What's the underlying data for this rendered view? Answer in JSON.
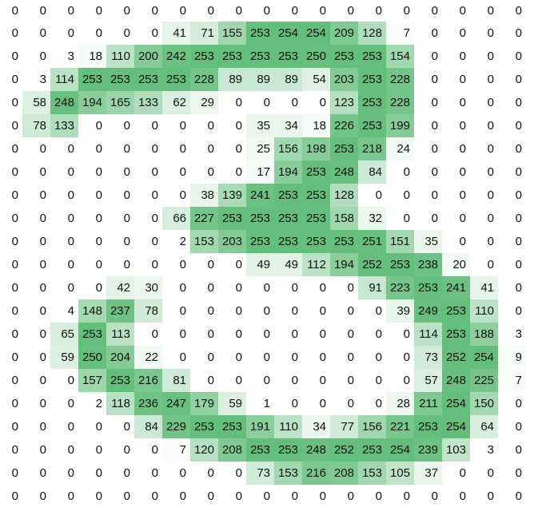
{
  "chart_data": {
    "type": "heatmap",
    "color_scale": {
      "min_value": 0,
      "max_value": 254,
      "min_color": "#FFFFFF",
      "max_color": "#63BE7B"
    },
    "values": [
      [
        0,
        0,
        0,
        0,
        0,
        0,
        0,
        0,
        0,
        0,
        0,
        0,
        0,
        0,
        0,
        0,
        0,
        0,
        0
      ],
      [
        0,
        0,
        0,
        0,
        0,
        0,
        41,
        71,
        155,
        253,
        254,
        254,
        209,
        128,
        7,
        0,
        0,
        0,
        0
      ],
      [
        0,
        0,
        3,
        18,
        110,
        200,
        242,
        253,
        253,
        253,
        253,
        250,
        253,
        253,
        154,
        0,
        0,
        0,
        0
      ],
      [
        0,
        3,
        114,
        253,
        253,
        253,
        253,
        228,
        89,
        89,
        89,
        54,
        203,
        253,
        228,
        0,
        0,
        0,
        0
      ],
      [
        0,
        58,
        248,
        194,
        165,
        133,
        62,
        29,
        0,
        0,
        0,
        0,
        123,
        253,
        228,
        0,
        0,
        0,
        0
      ],
      [
        0,
        78,
        133,
        0,
        0,
        0,
        0,
        0,
        0,
        35,
        34,
        18,
        226,
        253,
        199,
        0,
        0,
        0,
        0
      ],
      [
        0,
        0,
        0,
        0,
        0,
        0,
        0,
        0,
        0,
        25,
        156,
        198,
        253,
        218,
        24,
        0,
        0,
        0,
        0
      ],
      [
        0,
        0,
        0,
        0,
        0,
        0,
        0,
        0,
        0,
        17,
        194,
        253,
        248,
        84,
        0,
        0,
        0,
        0,
        0
      ],
      [
        0,
        0,
        0,
        0,
        0,
        0,
        0,
        38,
        139,
        241,
        253,
        253,
        128,
        0,
        0,
        0,
        0,
        0,
        0
      ],
      [
        0,
        0,
        0,
        0,
        0,
        0,
        66,
        227,
        253,
        253,
        253,
        253,
        158,
        32,
        0,
        0,
        0,
        0,
        0
      ],
      [
        0,
        0,
        0,
        0,
        0,
        0,
        2,
        153,
        203,
        253,
        253,
        253,
        253,
        251,
        151,
        35,
        0,
        0,
        0
      ],
      [
        0,
        0,
        0,
        0,
        0,
        0,
        0,
        0,
        0,
        49,
        49,
        112,
        194,
        252,
        253,
        238,
        20,
        0,
        0
      ],
      [
        0,
        0,
        0,
        0,
        42,
        30,
        0,
        0,
        0,
        0,
        0,
        0,
        0,
        91,
        223,
        253,
        241,
        41,
        0
      ],
      [
        0,
        0,
        4,
        148,
        237,
        78,
        0,
        0,
        0,
        0,
        0,
        0,
        0,
        0,
        39,
        249,
        253,
        110,
        0
      ],
      [
        0,
        0,
        65,
        253,
        113,
        0,
        0,
        0,
        0,
        0,
        0,
        0,
        0,
        0,
        0,
        114,
        253,
        188,
        3
      ],
      [
        0,
        0,
        59,
        250,
        204,
        22,
        0,
        0,
        0,
        0,
        0,
        0,
        0,
        0,
        0,
        73,
        252,
        254,
        9
      ],
      [
        0,
        0,
        0,
        157,
        253,
        216,
        81,
        0,
        0,
        0,
        0,
        0,
        0,
        0,
        0,
        57,
        248,
        225,
        7
      ],
      [
        0,
        0,
        0,
        2,
        118,
        236,
        247,
        179,
        59,
        1,
        0,
        0,
        0,
        0,
        28,
        211,
        254,
        150,
        0
      ],
      [
        0,
        0,
        0,
        0,
        0,
        84,
        229,
        253,
        253,
        191,
        110,
        34,
        77,
        156,
        221,
        253,
        254,
        64,
        0
      ],
      [
        0,
        0,
        0,
        0,
        0,
        0,
        7,
        120,
        208,
        253,
        253,
        248,
        252,
        253,
        254,
        239,
        103,
        3,
        0
      ],
      [
        0,
        0,
        0,
        0,
        0,
        0,
        0,
        0,
        0,
        73,
        153,
        216,
        208,
        153,
        105,
        37,
        0,
        0,
        0
      ],
      [
        0,
        0,
        0,
        0,
        0,
        0,
        0,
        0,
        0,
        0,
        0,
        0,
        0,
        0,
        0,
        0,
        0,
        0,
        0
      ]
    ]
  }
}
